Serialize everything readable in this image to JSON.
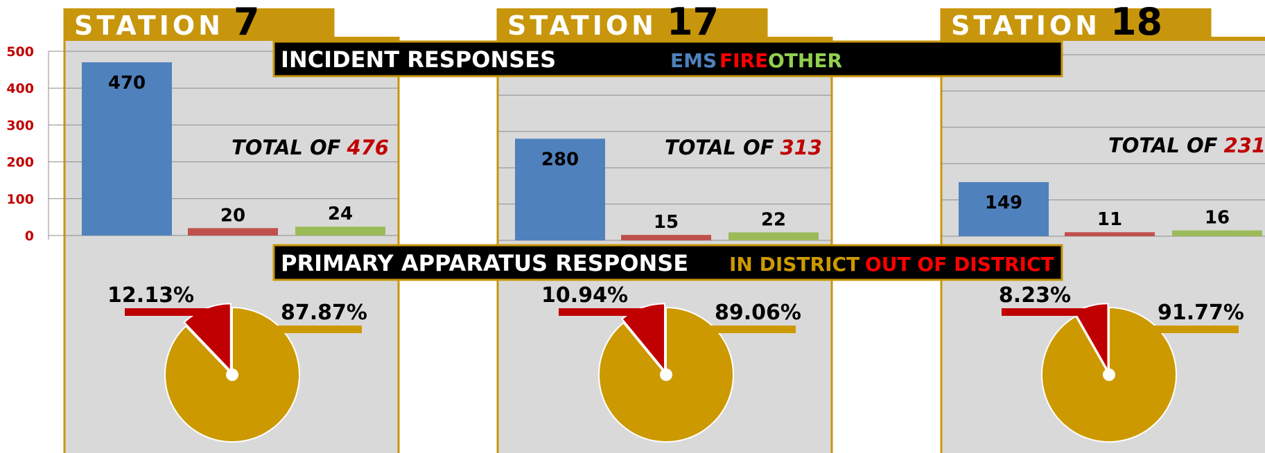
{
  "stations": [
    {
      "label": "STATION",
      "number": "7",
      "total_label": "TOTAL OF",
      "total": 476
    },
    {
      "label": "STATION",
      "number": "17",
      "total_label": "TOTAL OF",
      "total": 313
    },
    {
      "label": "STATION",
      "number": "18",
      "total_label": "TOTAL OF",
      "total": 231
    }
  ],
  "incident_banner": {
    "title": "INCIDENT RESPONSES",
    "legend": [
      {
        "name": "EMS",
        "color": "#4f81bd"
      },
      {
        "name": "FIRE",
        "color": "#ff0000"
      },
      {
        "name": "OTHER",
        "color": "#92d050"
      }
    ]
  },
  "apparatus_banner": {
    "title": "PRIMARY APPARATUS RESPONSE",
    "legend": [
      {
        "name": "IN DISTRICT",
        "color": "#cc9900"
      },
      {
        "name": "OUT OF DISTRICT",
        "color": "#ff0000"
      }
    ]
  },
  "chart_data": [
    {
      "type": "bar",
      "values": [
        470,
        20,
        24
      ],
      "colors": [
        "#4f81bd",
        "#c0504d",
        "#9bbb59"
      ],
      "ylim": [
        0,
        500
      ],
      "yticks": [
        0,
        100,
        200,
        300,
        400,
        500
      ],
      "ytick_labels": true,
      "grid": true
    },
    {
      "type": "bar",
      "values": [
        280,
        15,
        22
      ],
      "colors": [
        "#4f81bd",
        "#c0504d",
        "#9bbb59"
      ],
      "ylim": [
        0,
        500
      ],
      "yticks": [
        0,
        100,
        200,
        300,
        400,
        500
      ],
      "ytick_labels": false,
      "grid": true
    },
    {
      "type": "bar",
      "values": [
        149,
        11,
        16
      ],
      "colors": [
        "#4f81bd",
        "#c0504d",
        "#9bbb59"
      ],
      "ylim": [
        0,
        500
      ],
      "yticks": [
        0,
        100,
        200,
        300,
        400,
        500
      ],
      "ytick_labels": false,
      "grid": true
    },
    {
      "type": "pie",
      "values": [
        12.13,
        87.87
      ],
      "value_labels": [
        "12.13%",
        "87.87%"
      ],
      "colors": [
        "#c00000",
        "#cc9900"
      ]
    },
    {
      "type": "pie",
      "values": [
        10.94,
        89.06
      ],
      "value_labels": [
        "10.94%",
        "89.06%"
      ],
      "colors": [
        "#c00000",
        "#cc9900"
      ]
    },
    {
      "type": "pie",
      "values": [
        8.23,
        91.77
      ],
      "value_labels": [
        "8.23%",
        "91.77%"
      ],
      "colors": [
        "#c00000",
        "#cc9900"
      ]
    }
  ]
}
